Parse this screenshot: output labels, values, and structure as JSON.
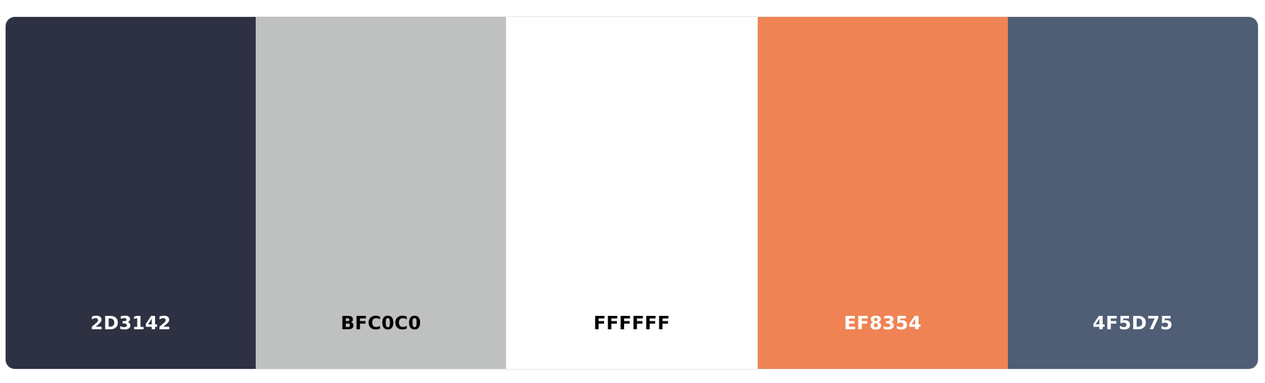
{
  "palette": {
    "swatches": [
      {
        "hex_label": "2D3142",
        "color": "#2D3142",
        "text_color": "#FFFFFF"
      },
      {
        "hex_label": "BFC0C0",
        "color": "#BFC0C0",
        "text_color": "#000000"
      },
      {
        "hex_label": "FFFFFF",
        "color": "#FFFFFF",
        "text_color": "#000000"
      },
      {
        "hex_label": "EF8354",
        "color": "#EF8354",
        "text_color": "#FFFFFF"
      },
      {
        "hex_label": "4F5D75",
        "color": "#4F5D75",
        "text_color": "#FFFFFF"
      }
    ]
  }
}
